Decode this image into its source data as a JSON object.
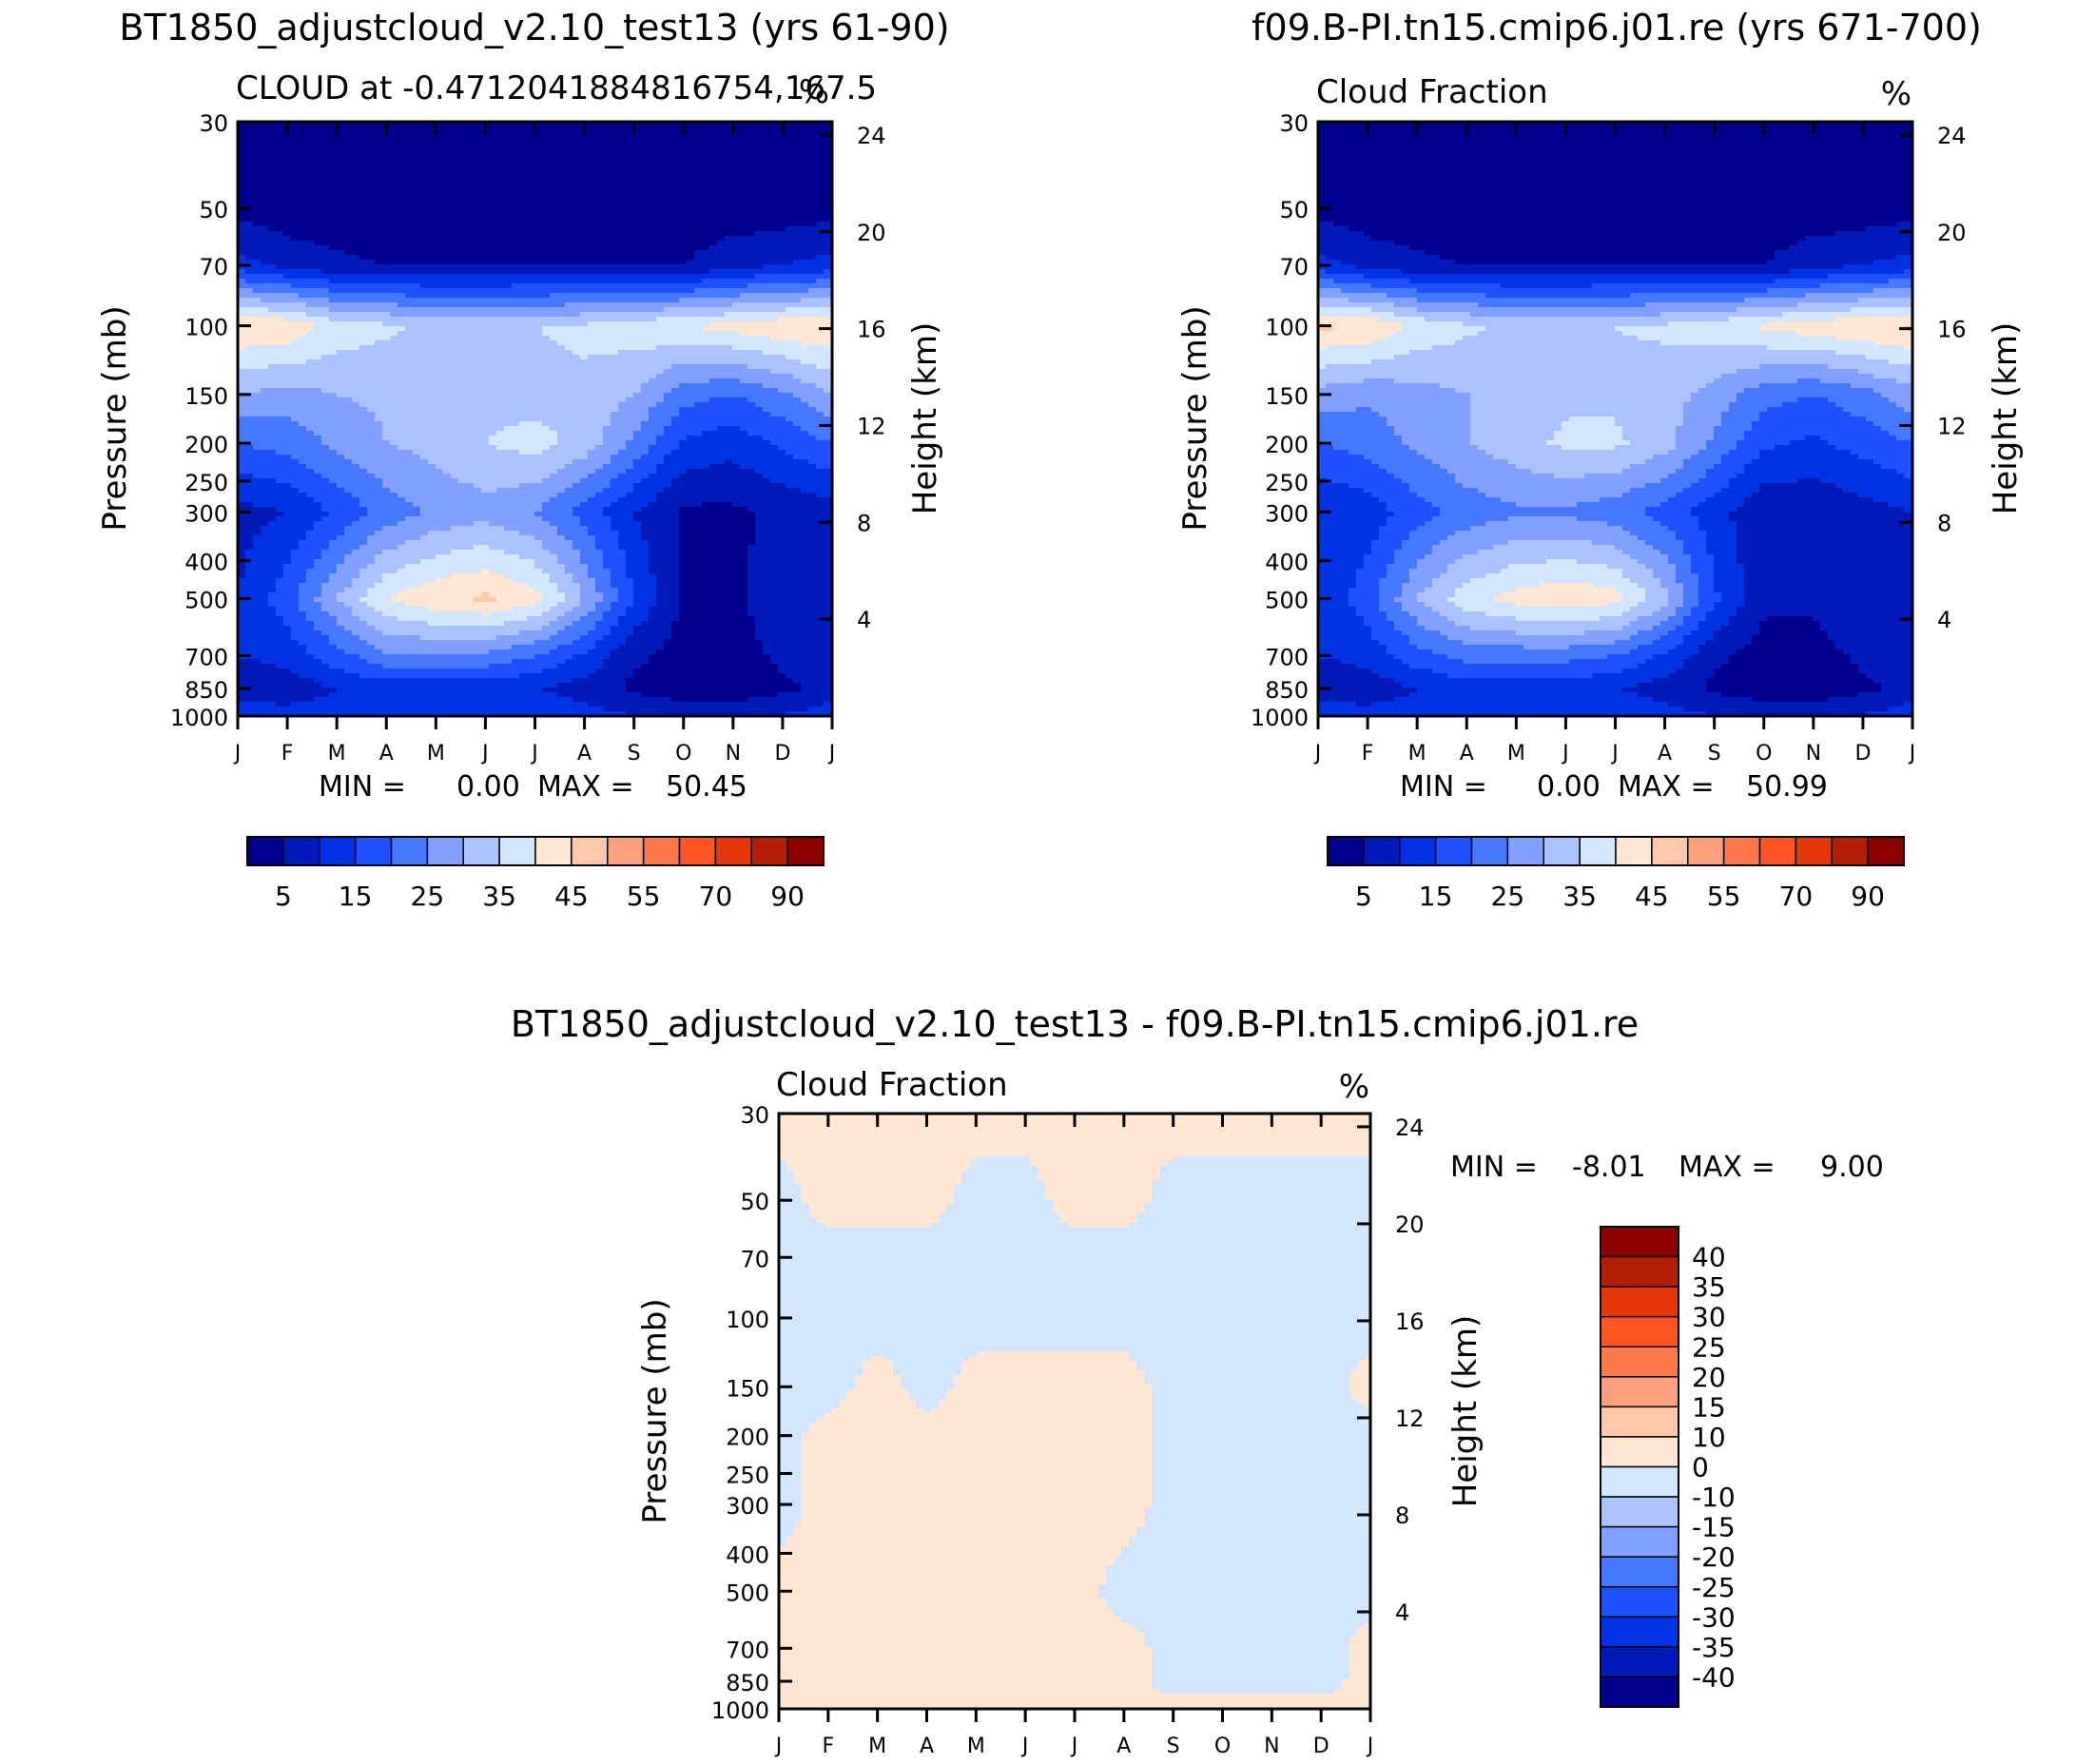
{
  "palette": {
    "cloud": [
      "#00008c",
      "#0019b9",
      "#0032e6",
      "#1e50ff",
      "#4678ff",
      "#82a0ff",
      "#aac3ff",
      "#d2e6ff",
      "#ffe6d2",
      "#ffc8aa",
      "#ffa07d",
      "#ff784b",
      "#ff5523",
      "#e6370a",
      "#b41e05",
      "#8c0000"
    ],
    "diff": [
      "#00008c",
      "#0019b9",
      "#0032e6",
      "#1e50ff",
      "#4678ff",
      "#82a0ff",
      "#aac3ff",
      "#d2e6ff",
      "#ffe6d2",
      "#ffc8aa",
      "#ffa07d",
      "#ff784b",
      "#ff5523",
      "#e6370a",
      "#b41e05",
      "#8c0000"
    ]
  },
  "shared_axes": {
    "ylabel": "Pressure (mb)",
    "y2label": "Height (km)",
    "pressure_ticks": [
      "30",
      "50",
      "70",
      "100",
      "150",
      "200",
      "250",
      "300",
      "400",
      "500",
      "700",
      "850",
      "1000"
    ],
    "height_ticks": [
      "24",
      "20",
      "16",
      "12",
      "8",
      "4"
    ],
    "month_ticks": [
      "J",
      "F",
      "M",
      "A",
      "M",
      "J",
      "J",
      "A",
      "S",
      "O",
      "N",
      "D",
      "J"
    ]
  },
  "chart_data": [
    {
      "id": "panel-a",
      "type": "heatmap",
      "case_title": "BT1850_adjustcloud_v2.10_test13 (yrs 61-90)",
      "subtitle": "CLOUD at -0.4712041884816754,167.5",
      "units": "%",
      "stats": {
        "min_label": "MIN =",
        "min": "0.00",
        "max_label": "MAX =",
        "max": "50.45"
      },
      "colorbar_labels": [
        "5",
        "15",
        "25",
        "35",
        "45",
        "55",
        "70",
        "90"
      ],
      "months": [
        "J",
        "F",
        "M",
        "A",
        "M",
        "J",
        "J",
        "A",
        "S",
        "O",
        "N",
        "D",
        "J"
      ],
      "pressure_levels": [
        30,
        50,
        70,
        100,
        150,
        200,
        300,
        500,
        700,
        850,
        1000
      ],
      "values": [
        [
          1,
          1,
          1,
          1,
          1,
          1,
          1,
          1,
          1,
          1,
          1,
          1,
          1
        ],
        [
          3,
          2,
          2,
          2,
          2,
          2,
          2,
          2,
          2,
          2,
          2,
          2,
          3
        ],
        [
          12,
          8,
          6,
          5,
          5,
          5,
          5,
          5,
          5,
          5,
          8,
          10,
          12
        ],
        [
          45,
          44,
          38,
          36,
          34,
          34,
          35,
          36,
          38,
          40,
          42,
          44,
          45
        ],
        [
          30,
          28,
          30,
          31,
          32,
          33,
          33,
          34,
          30,
          22,
          20,
          24,
          30
        ],
        [
          20,
          22,
          26,
          30,
          32,
          35,
          37,
          33,
          24,
          14,
          12,
          16,
          20
        ],
        [
          8,
          10,
          16,
          22,
          26,
          28,
          25,
          18,
          10,
          4,
          4,
          6,
          8
        ],
        [
          10,
          18,
          30,
          40,
          44,
          46,
          42,
          30,
          15,
          4,
          4,
          8,
          10
        ],
        [
          10,
          12,
          18,
          24,
          24,
          24,
          20,
          14,
          6,
          3,
          3,
          6,
          10
        ],
        [
          6,
          7,
          10,
          12,
          12,
          12,
          10,
          8,
          4,
          2,
          2,
          4,
          6
        ],
        [
          14,
          12,
          12,
          13,
          13,
          14,
          13,
          12,
          10,
          8,
          8,
          10,
          14
        ]
      ]
    },
    {
      "id": "panel-b",
      "type": "heatmap",
      "case_title": "f09.B-PI.tn15.cmip6.j01.re (yrs 671-700)",
      "subtitle": "Cloud Fraction",
      "units": "%",
      "stats": {
        "min_label": "MIN =",
        "min": "0.00",
        "max_label": "MAX =",
        "max": "50.99"
      },
      "colorbar_labels": [
        "5",
        "15",
        "25",
        "35",
        "45",
        "55",
        "70",
        "90"
      ],
      "months": [
        "J",
        "F",
        "M",
        "A",
        "M",
        "J",
        "J",
        "A",
        "S",
        "O",
        "N",
        "D",
        "J"
      ],
      "pressure_levels": [
        30,
        50,
        70,
        100,
        150,
        200,
        300,
        500,
        700,
        850,
        1000
      ],
      "values": [
        [
          1,
          1,
          1,
          1,
          1,
          1,
          1,
          1,
          1,
          1,
          1,
          1,
          1
        ],
        [
          3,
          2,
          2,
          2,
          2,
          2,
          2,
          2,
          2,
          2,
          2,
          2,
          3
        ],
        [
          12,
          8,
          6,
          5,
          5,
          5,
          5,
          5,
          5,
          5,
          8,
          10,
          12
        ],
        [
          46,
          45,
          39,
          36,
          34,
          34,
          35,
          36,
          38,
          41,
          43,
          45,
          46
        ],
        [
          28,
          26,
          28,
          30,
          32,
          34,
          34,
          32,
          28,
          22,
          20,
          23,
          28
        ],
        [
          20,
          22,
          26,
          30,
          33,
          36,
          36,
          32,
          24,
          16,
          14,
          17,
          20
        ],
        [
          10,
          12,
          18,
          22,
          24,
          24,
          22,
          18,
          12,
          6,
          6,
          8,
          10
        ],
        [
          10,
          18,
          30,
          38,
          42,
          44,
          42,
          32,
          16,
          6,
          6,
          9,
          10
        ],
        [
          10,
          12,
          18,
          22,
          22,
          22,
          20,
          14,
          6,
          3,
          3,
          6,
          10
        ],
        [
          6,
          7,
          10,
          12,
          12,
          12,
          10,
          8,
          4,
          2,
          2,
          4,
          6
        ],
        [
          14,
          12,
          12,
          13,
          13,
          14,
          13,
          12,
          10,
          8,
          8,
          10,
          14
        ]
      ]
    },
    {
      "id": "panel-c",
      "type": "heatmap",
      "case_title": "BT1850_adjustcloud_v2.10_test13 - f09.B-PI.tn15.cmip6.j01.re",
      "subtitle": "Cloud Fraction",
      "units": "%",
      "stats": {
        "min_label": "MIN =",
        "min": "-8.01",
        "max_label": "MAX =",
        "max": "9.00"
      },
      "colorbar_labels": [
        "40",
        "35",
        "30",
        "25",
        "20",
        "15",
        "10",
        "0",
        "-10",
        "-15",
        "-20",
        "-25",
        "-30",
        "-35",
        "-40"
      ],
      "months": [
        "J",
        "F",
        "M",
        "A",
        "M",
        "J",
        "J",
        "A",
        "S",
        "O",
        "N",
        "D",
        "J"
      ],
      "pressure_levels": [
        30,
        50,
        70,
        100,
        150,
        200,
        300,
        500,
        700,
        850,
        1000
      ],
      "values": [
        [
          1,
          1,
          1,
          1,
          1,
          1,
          1,
          1,
          1,
          1,
          1,
          1,
          1
        ],
        [
          -1,
          1,
          1,
          1,
          -1,
          -1,
          1,
          1,
          -1,
          -1,
          -1,
          -1,
          -1
        ],
        [
          -1,
          -1,
          -1,
          -1,
          -1,
          -1,
          -1,
          -1,
          -1,
          -1,
          -1,
          -1,
          -1
        ],
        [
          -1,
          -1,
          -1,
          -1,
          -1,
          -1,
          -1,
          -1,
          -1,
          -1,
          -1,
          -1,
          -1
        ],
        [
          -1,
          -1,
          1,
          -1,
          1,
          1,
          1,
          1,
          -1,
          -1,
          -1,
          -1,
          1
        ],
        [
          -1,
          1,
          1,
          1,
          1,
          1,
          1,
          1,
          -1,
          -1,
          -1,
          -1,
          -1
        ],
        [
          -1,
          1,
          1,
          1,
          1,
          1,
          1,
          1,
          -1,
          -1,
          -1,
          -1,
          -1
        ],
        [
          1,
          1,
          1,
          1,
          1,
          1,
          1,
          -1,
          -1,
          -1,
          -1,
          -1,
          -1
        ],
        [
          1,
          1,
          1,
          1,
          1,
          1,
          1,
          1,
          -1,
          -1,
          -1,
          -1,
          1
        ],
        [
          1,
          1,
          1,
          1,
          1,
          1,
          1,
          1,
          -1,
          -1,
          -1,
          -1,
          1
        ],
        [
          1,
          1,
          1,
          1,
          1,
          1,
          1,
          1,
          1,
          1,
          1,
          1,
          1
        ]
      ]
    }
  ]
}
